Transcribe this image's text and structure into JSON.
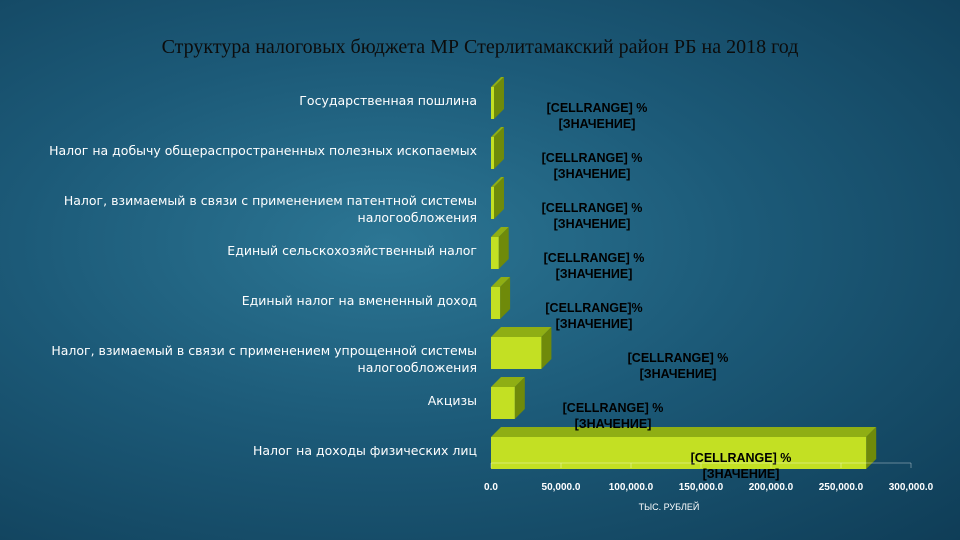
{
  "chart_data": {
    "type": "bar",
    "orientation": "horizontal",
    "three_d": true,
    "title": "Структура налоговых бюджета МР Стерлитамакский  район РБ на 2018 год",
    "xlabel": "ТЫС. РУБЛЕЙ",
    "ylabel": "",
    "xlim": [
      0,
      300000
    ],
    "x_ticks": [
      "0.0",
      "50,000.0",
      "100,000.0",
      "150,000.0",
      "200,000.0",
      "250,000.0",
      "300,000.0"
    ],
    "categories": [
      [
        "Государственная пошлина"
      ],
      [
        "Налог на добычу общераспространенных полезных ископаемых"
      ],
      [
        "Налог, взимаемый в связи с применением патентной системы",
        "налогообложения"
      ],
      [
        "Единый сельскохозяйственный налог"
      ],
      [
        "Единый налог на вмененный доход"
      ],
      [
        "Налог, взимаемый в связи с применением упрощенной системы",
        "налогообложения"
      ],
      [
        "Акцизы"
      ],
      [
        "Налог на доходы физических лиц"
      ]
    ],
    "values": [
      200,
      700,
      300,
      5500,
      6500,
      36000,
      17000,
      268000
    ],
    "data_labels": [
      [
        "[CELLRANGE] %",
        "[ЗНАЧЕНИЕ]"
      ],
      [
        "[CELLRANGE] %",
        "[ЗНАЧЕНИЕ]"
      ],
      [
        "[CELLRANGE] %",
        "[ЗНАЧЕНИЕ]"
      ],
      [
        "[CELLRANGE] %",
        "[ЗНАЧЕНИЕ]"
      ],
      [
        "[CELLRANGE]%",
        "[ЗНАЧЕНИЕ]"
      ],
      [
        "[CELLRANGE] %",
        "[ЗНАЧЕНИЕ]"
      ],
      [
        "[CELLRANGE] %",
        "[ЗНАЧЕНИЕ]"
      ],
      [
        "[CELLRANGE] %",
        "[ЗНАЧЕНИЕ]"
      ]
    ],
    "grid": false,
    "legend": "none",
    "colors": {
      "bar_front": "#c3e023",
      "bar_top": "#8fae14",
      "bar_side": "#6f8a0a"
    }
  }
}
